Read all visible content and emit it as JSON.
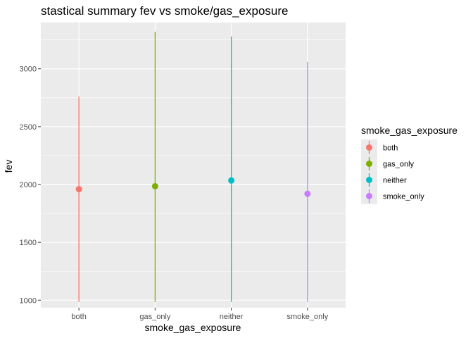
{
  "chart_data": {
    "type": "pointrange",
    "title": "stastical summary fev vs smoke/gas_exposure",
    "xlabel": "smoke_gas_exposure",
    "ylabel": "fev",
    "categories": [
      "both",
      "gas_only",
      "neither",
      "smoke_only"
    ],
    "y_ticks": [
      1000,
      1500,
      2000,
      2500,
      3000
    ],
    "ylim": [
      935,
      3400
    ],
    "series": [
      {
        "name": "both",
        "color": "#F8766D",
        "y": 1960,
        "ymin": 985,
        "ymax": 2760
      },
      {
        "name": "gas_only",
        "color": "#7CAE00",
        "y": 1985,
        "ymin": 985,
        "ymax": 3320
      },
      {
        "name": "neither",
        "color": "#00BFC4",
        "y": 2035,
        "ymin": 985,
        "ymax": 3280
      },
      {
        "name": "smoke_only",
        "color": "#C77CFF",
        "y": 1920,
        "ymin": 985,
        "ymax": 3060
      }
    ],
    "legend": {
      "title": "smoke_gas_exposure",
      "position": "right"
    },
    "grid": true
  }
}
